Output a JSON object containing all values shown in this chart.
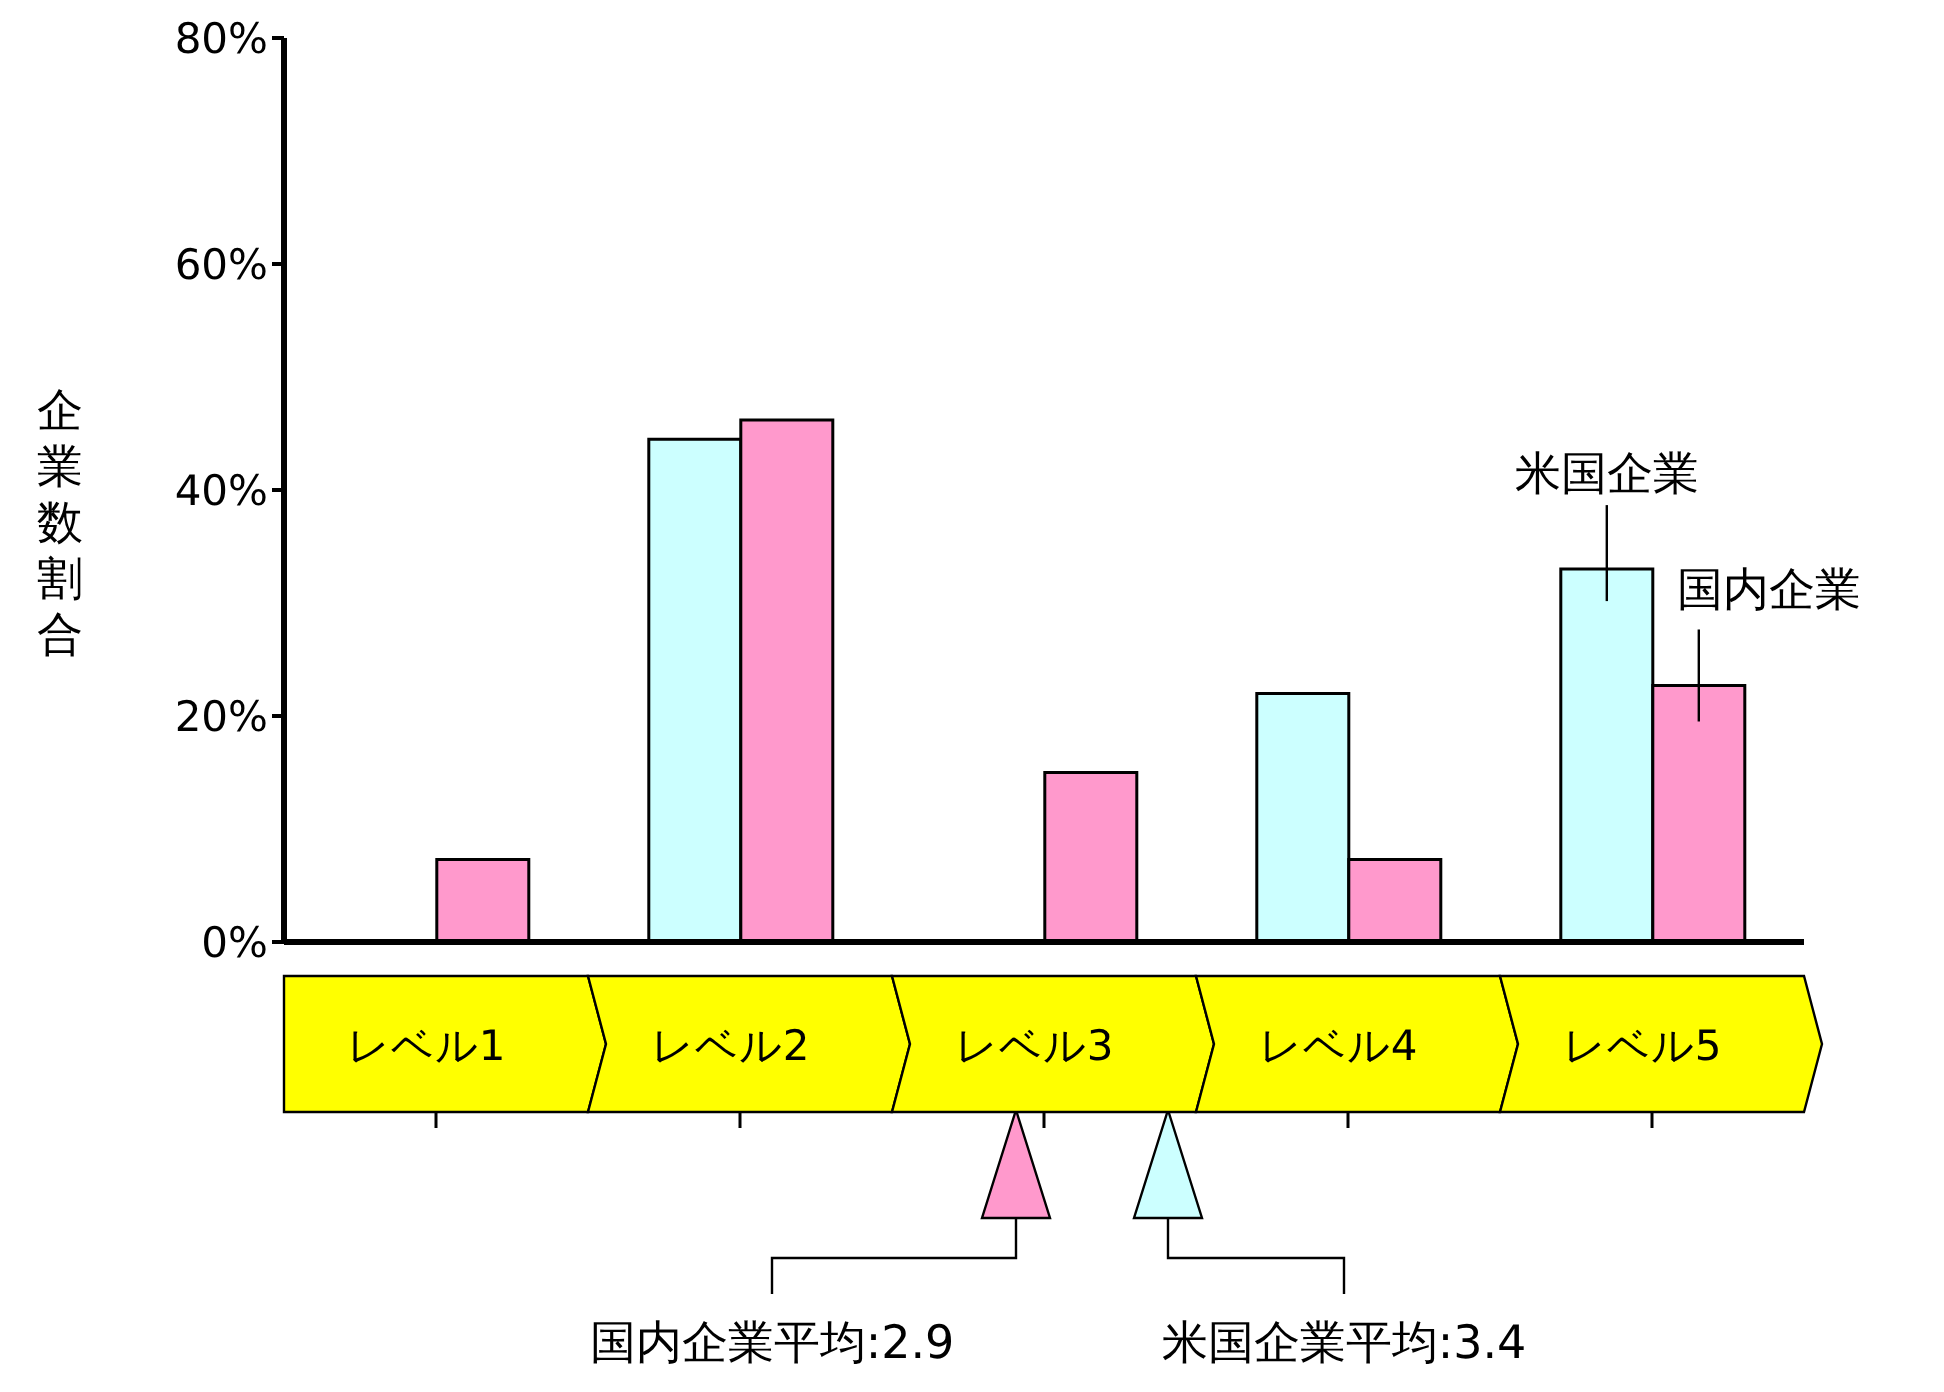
{
  "chart_data": {
    "type": "bar",
    "ylabel": "企業数割合",
    "categories": [
      "レベル1",
      "レベル2",
      "レベル3",
      "レベル4",
      "レベル5"
    ],
    "series": [
      {
        "name": "米国企業",
        "color": "#ccffff",
        "values": [
          0,
          44.5,
          0,
          22,
          33
        ]
      },
      {
        "name": "国内企業",
        "color": "#ff99cc",
        "values": [
          7.3,
          46.2,
          15,
          7.3,
          22.7
        ]
      }
    ],
    "ylim": [
      0,
      80
    ],
    "yticks": [
      {
        "value": 0,
        "label": "0%"
      },
      {
        "value": 20,
        "label": "20%"
      },
      {
        "value": 40,
        "label": "40%"
      },
      {
        "value": 60,
        "label": "60%"
      },
      {
        "value": 80,
        "label": "80%"
      }
    ],
    "annotations": [
      "国内企業平均:2.9",
      "米国企業平均:3.4"
    ]
  }
}
